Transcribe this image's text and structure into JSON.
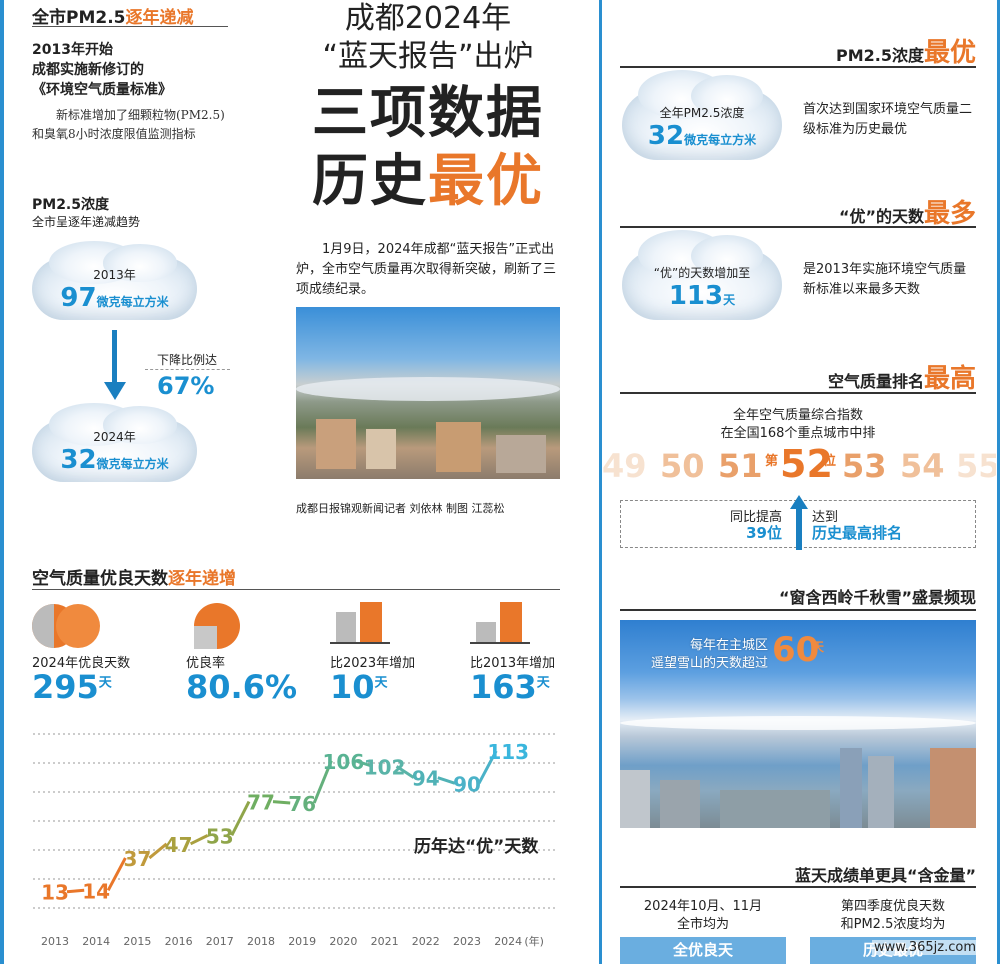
{
  "left": {
    "h1": {
      "a": "全市PM2.5",
      "b": "逐年递减"
    },
    "intro1": "2013年开始",
    "intro2": "成都实施新修订的",
    "intro3": "《环境空气质量标准》",
    "note": "新标准增加了细颗粒物(PM2.5)和臭氧8小时浓度限值监测指标",
    "pm_title": "PM2.5浓度",
    "pm_sub": "全市呈逐年递减趋势",
    "c1_year": "2013年",
    "c1_num": "97",
    "c1_unit": "微克每立方米",
    "drop_label": "下降比例达",
    "drop_val": "67%",
    "c2_year": "2024年",
    "c2_num": "32",
    "c2_unit": "微克每立方米",
    "aq_title": {
      "a": "空气质量优良天数",
      "b": "逐年递增"
    },
    "stats": [
      {
        "label": "2024年优良天数",
        "num": "295",
        "unit": "天"
      },
      {
        "label": "优良率",
        "num": "80.6%",
        "unit": ""
      },
      {
        "label": "比2023年增加",
        "num": "10",
        "unit": "天"
      },
      {
        "label": "比2013年增加",
        "num": "163",
        "unit": "天"
      }
    ],
    "chart_title": "历年达“优”天数"
  },
  "chart_data": {
    "type": "line",
    "title": "历年达“优”天数",
    "x": [
      "2013",
      "2014",
      "2015",
      "2016",
      "2017",
      "2018",
      "2019",
      "2020",
      "2021",
      "2022",
      "2023",
      "2024"
    ],
    "values": [
      13,
      14,
      37,
      47,
      53,
      77,
      76,
      106,
      102,
      94,
      90,
      113
    ],
    "x_unit": "(年)",
    "grid": true
  },
  "center": {
    "headline1": "成都2024年",
    "headline2": "“蓝天报告”出炉",
    "big1": "三项数据",
    "big2a": "历史",
    "big2b": "最优",
    "body": "1月9日，2024年成都“蓝天报告”正式出炉，全市空气质量再次取得新突破，刷新了三项成绩纪录。",
    "credit": "成都日报锦观新闻记者 刘依林 制图 江蕊松"
  },
  "right": {
    "s1": {
      "a": "PM2.5浓度",
      "b": "最优"
    },
    "s1_cloud_l1": "全年PM2.5浓度",
    "s1_cloud_num": "32",
    "s1_cloud_unit": "微克每立方米",
    "s1_desc": "首次达到国家环境空气质量二级标准为历史最优",
    "s2": {
      "a": "“优”的天数",
      "b": "最多"
    },
    "s2_cloud_l1": "“优”的天数增加至",
    "s2_cloud_num": "113",
    "s2_cloud_unit": "天",
    "s2_desc": "是2013年实施环境空气质量新标准以来最多天数",
    "s3": {
      "a": "空气质量排名",
      "b": "最高"
    },
    "s3_l1": "全年空气质量综合指数",
    "s3_l2": "在全国168个重点城市中排",
    "ranks": [
      "49",
      "50",
      "51",
      "52",
      "53",
      "54",
      "55"
    ],
    "rank_pre": "第",
    "rank_post": "位",
    "up_l1": "同比提高",
    "up_num": "39位",
    "best_l1": "达到",
    "best_l2": "历史最高排名",
    "s4": "“窗含西岭千秋雪”盛景频现",
    "snow_l1": "每年在主城区",
    "snow_l2": "遥望雪山的天数超过",
    "snow_num": "60",
    "snow_unit": "天",
    "s5": "蓝天成绩单更具“含金量”",
    "b1_l1": "2024年10月、11月",
    "b1_l2": "全市均为",
    "b1_btn": "全优良天",
    "b2_l1": "第四季度优良天数",
    "b2_l2": "和PM2.5浓度均为",
    "b2_btn": "历史最优",
    "watermark": "www.365jz.com"
  }
}
